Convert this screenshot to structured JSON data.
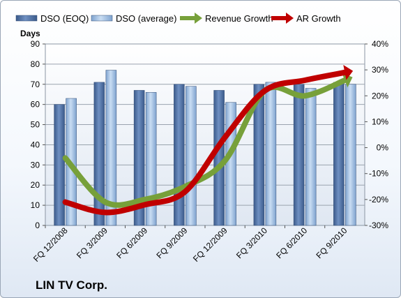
{
  "company": "LIN TV Corp.",
  "chart_data": {
    "type": "bar",
    "categories": [
      "FQ 12/2008",
      "FQ 3/2009",
      "FQ 6/2009",
      "FQ 9/2009",
      "FQ 12/2009",
      "FQ 3/2010",
      "FQ 6/2010",
      "FQ 9/2010"
    ],
    "series": [
      {
        "name": "DSO (EOQ)",
        "type": "bar",
        "axis": "left",
        "color": "#4f6f9f",
        "values": [
          60,
          71,
          67,
          70,
          67,
          70,
          70,
          71
        ]
      },
      {
        "name": "DSO (average)",
        "type": "bar",
        "axis": "left",
        "color": "#9fbfe3",
        "values": [
          63,
          77,
          66,
          69,
          61,
          71,
          68,
          70
        ]
      },
      {
        "name": "Revenue Growth",
        "type": "line",
        "axis": "right",
        "unit": "%",
        "color": "#77a03a",
        "values": [
          -4,
          -21,
          -20,
          -15,
          -5,
          22,
          20,
          26
        ]
      },
      {
        "name": "AR Growth",
        "type": "line",
        "axis": "right",
        "unit": "%",
        "color": "#c00000",
        "values": [
          -21,
          -25,
          -22,
          -17,
          4,
          22,
          26,
          29
        ]
      }
    ],
    "y_left": {
      "label": "Days",
      "min": 0,
      "max": 90,
      "step": 10,
      "ticks": [
        "0",
        "10",
        "20",
        "30",
        "40",
        "50",
        "60",
        "70",
        "80",
        "90"
      ]
    },
    "y_right": {
      "min": -30,
      "max": 40,
      "step": 10,
      "ticks": [
        "-30%",
        "-20%",
        "-10%",
        "0%",
        "10%",
        "20%",
        "30%",
        "40%"
      ]
    },
    "grid": true,
    "legend_position": "top"
  }
}
